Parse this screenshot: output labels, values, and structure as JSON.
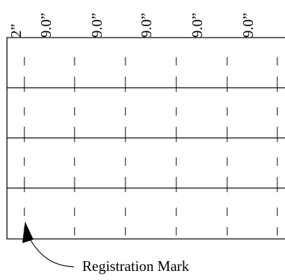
{
  "ruler": {
    "labels": [
      "2”",
      "9.0”",
      "9.0”",
      "9.0”",
      "9.0”",
      "9.0”"
    ]
  },
  "grid": {
    "row_count": 4,
    "column_count": 6
  },
  "callout": {
    "label": "Registration Mark"
  }
}
